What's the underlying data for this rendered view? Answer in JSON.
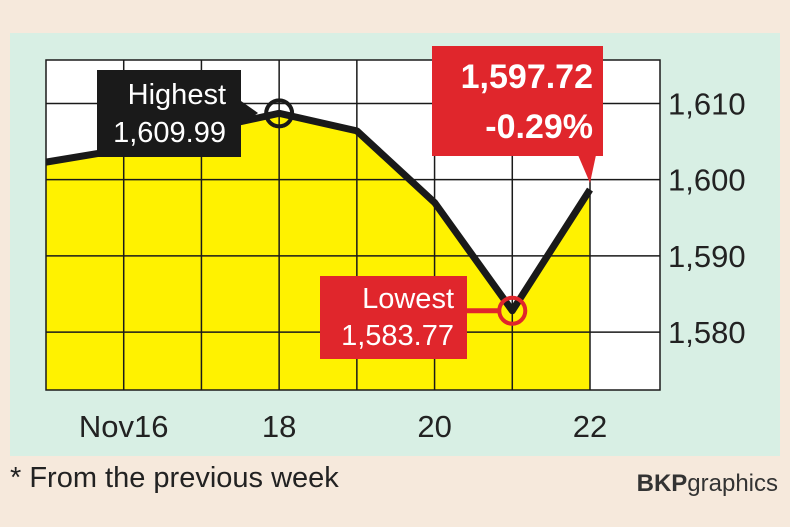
{
  "chart_data": {
    "type": "area",
    "x_labels": [
      "Nov16",
      "18",
      "20",
      "22"
    ],
    "points": [
      {
        "x": "Nov 15",
        "y": 1602.3
      },
      {
        "x": "Nov 16",
        "y": 1604.0
      },
      {
        "x": "Nov 17",
        "y": 1606.5
      },
      {
        "x": "Nov 18",
        "y": 1608.7
      },
      {
        "x": "Nov 19",
        "y": 1606.4
      },
      {
        "x": "Nov 20",
        "y": 1597.0
      },
      {
        "x": "Nov 21",
        "y": 1582.8
      },
      {
        "x": "Nov 22",
        "y": 1598.7
      }
    ],
    "y_ticks": [
      "1,610",
      "1,600",
      "1,590",
      "1,580"
    ],
    "y_tick_values": [
      1610,
      1600,
      1590,
      1580
    ],
    "ylim": [
      1572.4,
      1615.7
    ],
    "grid": true,
    "colors": {
      "fill": "#fff200",
      "line": "#1a1a1a",
      "plot_bg": "#ffffff",
      "panel": "#d8efe4",
      "highlight": "#e0262c",
      "label_dark": "#1a1a1a"
    },
    "annotations": {
      "highest": {
        "label": "Highest",
        "value": "1,609.99"
      },
      "lowest": {
        "label": "Lowest",
        "value": "1,583.77"
      },
      "latest": {
        "value": "1,597.72",
        "change": "-0.29%"
      }
    }
  },
  "footnote": "* From the previous week",
  "credit": {
    "bold": "BKP",
    "rest": "graphics"
  }
}
